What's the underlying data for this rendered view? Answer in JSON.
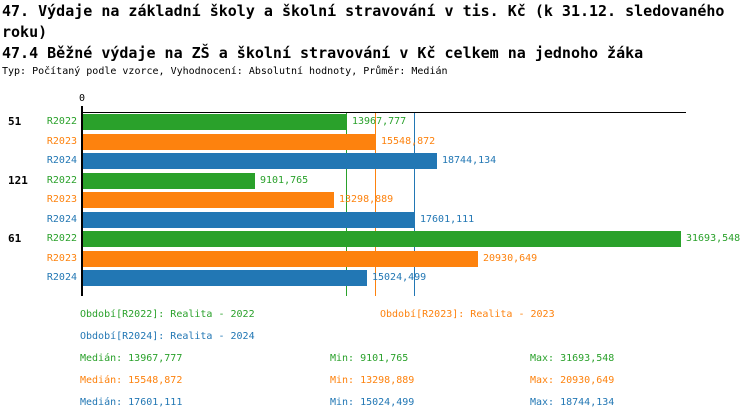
{
  "title_line1": "47. Výdaje na základní školy a školní stravování v tis. Kč (k 31.12. sledovaného",
  "title_line2": "roku)",
  "subtitle": "47.4 Běžné výdaje na ZŠ a školní stravování v Kč celkem na jednoho žáka",
  "meta_line": "Typ: Počítaný podle vzorce, Vyhodnocení: Absolutní hodnoty, Průměr: Medián",
  "colors": {
    "green": "#2aa12b",
    "orange": "#fd820e",
    "blue": "#2277b4",
    "black": "#000000"
  },
  "chart_data": {
    "type": "bar",
    "orientation": "horizontal",
    "axis_origin_label": "0",
    "x_min": 0,
    "x_max": 32000,
    "grid": false,
    "categories": [
      "51",
      "121",
      "61"
    ],
    "series": [
      {
        "name": "R2022",
        "color_key": "green",
        "values": [
          13967.777,
          9101.765,
          31693.548
        ],
        "value_labels": [
          "13967,777",
          "9101,765",
          "31693,548"
        ],
        "median": 13967.777
      },
      {
        "name": "R2023",
        "color_key": "orange",
        "values": [
          15548.872,
          13298.889,
          20930.649
        ],
        "value_labels": [
          "15548,872",
          "13298,889",
          "20930,649"
        ],
        "median": 15548.872
      },
      {
        "name": "R2024",
        "color_key": "blue",
        "values": [
          18744.134,
          17601.111,
          15024.499
        ],
        "value_labels": [
          "18744,134",
          "17601,111",
          "15024,499"
        ],
        "median": 17601.111
      }
    ]
  },
  "legend": {
    "items": [
      {
        "label": "Období[R2022]: Realita - 2022",
        "color_key": "green"
      },
      {
        "label": "Období[R2023]: Realita - 2023",
        "color_key": "orange"
      },
      {
        "label": "Období[R2024]: Realita - 2024",
        "color_key": "blue"
      }
    ]
  },
  "stats": {
    "rows": [
      {
        "color_key": "green",
        "median": "Medián: 13967,777",
        "min": "Min: 9101,765",
        "max": "Max: 31693,548"
      },
      {
        "color_key": "orange",
        "median": "Medián: 15548,872",
        "min": "Min: 13298,889",
        "max": "Max: 20930,649"
      },
      {
        "color_key": "blue",
        "median": "Medián: 17601,111",
        "min": "Min: 15024,499",
        "max": "Max: 18744,134"
      }
    ]
  }
}
